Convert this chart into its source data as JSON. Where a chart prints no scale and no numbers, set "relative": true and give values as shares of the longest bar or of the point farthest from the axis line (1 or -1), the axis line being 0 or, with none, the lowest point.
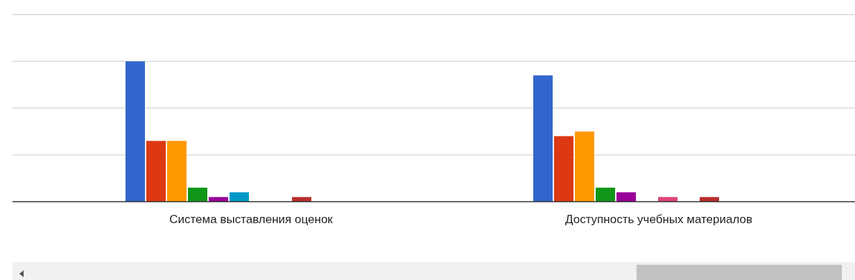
{
  "chart_data": {
    "type": "bar",
    "relative": true,
    "ref_lines": [
      {
        "axis": "y",
        "value": 0.333,
        "color": "#d9d9d9"
      },
      {
        "axis": "y",
        "value": 0.667,
        "color": "#d9d9d9"
      },
      {
        "axis": "y",
        "value": 1,
        "color": "#d9d9d9"
      },
      {
        "axis": "y",
        "value": 1.333,
        "color": "#d9d9d9"
      }
    ],
    "categories": [
      "Система выставления оценок",
      "Доступность учебных материалов"
    ],
    "series": [
      {
        "color": "#3366cc",
        "values": [
          1,
          0.9
        ]
      },
      {
        "color": "#dc3912",
        "values": [
          0.433,
          0.467
        ]
      },
      {
        "color": "#ff9900",
        "values": [
          0.433,
          0.5
        ]
      },
      {
        "color": "#109618",
        "values": [
          0.1,
          0.1
        ]
      },
      {
        "color": "#990099",
        "values": [
          0.033,
          0.067
        ]
      },
      {
        "color": "#0099c6",
        "values": [
          0.067,
          0
        ]
      },
      {
        "color": "#dd4477",
        "values": [
          0,
          0.033
        ]
      },
      {
        "color": "#66aa00",
        "values": [
          0,
          0
        ]
      },
      {
        "color": "#b82e2e",
        "values": [
          0.033,
          0.033
        ]
      }
    ]
  }
}
